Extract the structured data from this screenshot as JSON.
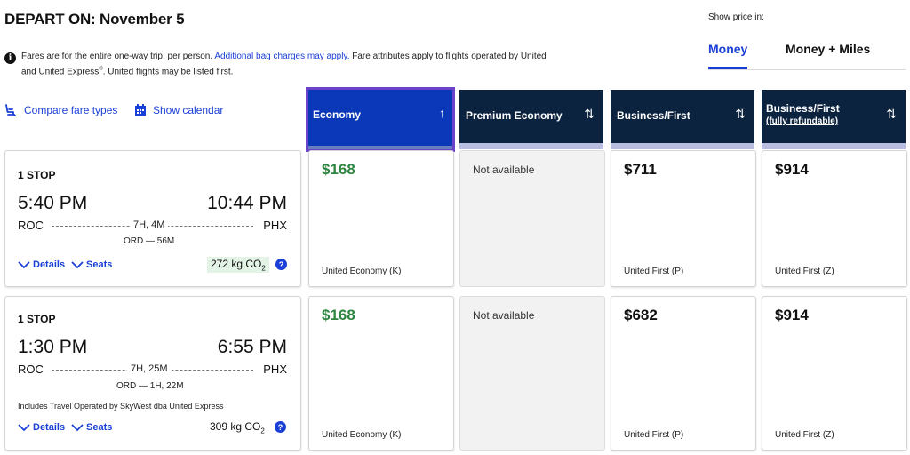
{
  "header": {
    "title": "DEPART ON: November 5",
    "notice_pre": "Fares are for the entire one-way trip, per person. ",
    "notice_link": "Additional bag charges may apply.",
    "notice_post": " Fare attributes apply to flights operated by United",
    "notice_line2a": "and United Express",
    "notice_sup": "®",
    "notice_line2b": ". United flights may be listed first."
  },
  "price_toggle": {
    "label": "Show price in:",
    "tabs": [
      "Money",
      "Money + Miles"
    ],
    "selected": "Money"
  },
  "utilities": {
    "compare": "Compare fare types",
    "calendar": "Show calendar"
  },
  "columns": [
    {
      "label": "Economy",
      "sort": "↑"
    },
    {
      "label": "Premium Economy",
      "sort": "⇅"
    },
    {
      "label": "Business/First",
      "sort": "⇅"
    },
    {
      "label": "Business/First",
      "sublabel": "(fully refundable)",
      "sort": "⇅"
    }
  ],
  "flights": [
    {
      "stops": "1 STOP",
      "depart_time": "5:40 PM",
      "arrive_time": "10:44 PM",
      "origin": "ROC",
      "destination": "PHX",
      "duration": "7H, 4M",
      "layover": "ORD — 56M",
      "operated_by": "",
      "details_label": "Details",
      "seats_label": "Seats",
      "co2_value": "272 kg CO",
      "co2_sub": "2",
      "fares": [
        {
          "price": "$168",
          "class": "United Economy (K)"
        },
        {
          "available": false,
          "text": "Not available"
        },
        {
          "price": "$711",
          "class": "United First (P)"
        },
        {
          "price": "$914",
          "class": "United First (Z)"
        }
      ]
    },
    {
      "stops": "1 STOP",
      "depart_time": "1:30 PM",
      "arrive_time": "6:55 PM",
      "origin": "ROC",
      "destination": "PHX",
      "duration": "7H, 25M",
      "layover": "ORD — 1H, 22M",
      "operated_by": "Includes Travel Operated by SkyWest dba United Express",
      "details_label": "Details",
      "seats_label": "Seats",
      "co2_value": "309 kg CO",
      "co2_sub": "2",
      "fares": [
        {
          "price": "$168",
          "class": "United Economy (K)"
        },
        {
          "available": false,
          "text": "Not available"
        },
        {
          "price": "$682",
          "class": "United First (P)"
        },
        {
          "price": "$914",
          "class": "United First (Z)"
        }
      ]
    }
  ],
  "colors": {
    "brand_blue": "#1a3fd6",
    "header_navy": "#0c2340",
    "active_header": "#0a38b8",
    "active_border": "#6a43c9",
    "lowest_price_green": "#2e8540"
  }
}
